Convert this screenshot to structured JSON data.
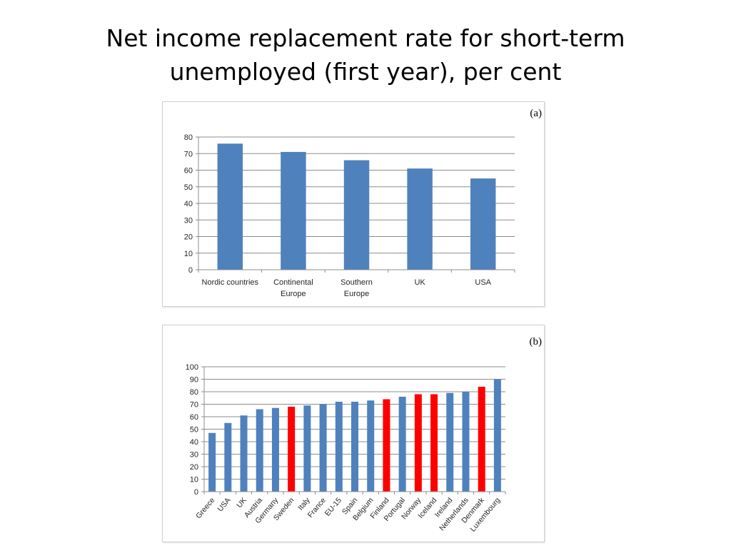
{
  "slide": {
    "title_line1": "Net income replacement rate for short-term",
    "title_line2": "unemployed (first year), per cent"
  },
  "colors": {
    "bar_default": "#4f81bd",
    "bar_highlight": "#ff0000",
    "gridline": "#8c8c8c",
    "axis": "#8c8c8c",
    "text": "#262626"
  },
  "chart_data": [
    {
      "type": "bar",
      "panel_label": "(a)",
      "categories": [
        "Nordic countries",
        "Continental Europe",
        "Southern Europe",
        "UK",
        "USA"
      ],
      "category_lines": [
        [
          "Nordic countries"
        ],
        [
          "Continental",
          "Europe"
        ],
        [
          "Southern",
          "Europe"
        ],
        [
          "UK"
        ],
        [
          "USA"
        ]
      ],
      "values": [
        76,
        71,
        66,
        61,
        55
      ],
      "ylim": [
        0,
        80
      ],
      "yticks": [
        0,
        10,
        20,
        30,
        40,
        50,
        60,
        70,
        80
      ],
      "grid": true,
      "legend": "none",
      "title": "",
      "xlabel": "",
      "ylabel": ""
    },
    {
      "type": "bar",
      "panel_label": "(b)",
      "categories": [
        "Greece",
        "USA",
        "UK",
        "Austria",
        "Germany",
        "Sweden",
        "Italy",
        "France",
        "EU-15",
        "Spain",
        "Belgium",
        "Finland",
        "Portugal",
        "Norway",
        "Iceland",
        "Ireland",
        "Netherlands",
        "Denmark",
        "Luxembourg"
      ],
      "values": [
        47,
        55,
        61,
        66,
        67,
        68,
        69,
        70,
        72,
        72,
        73,
        74,
        76,
        78,
        78,
        79,
        80,
        84,
        90
      ],
      "highlighted": [
        "Sweden",
        "Finland",
        "Norway",
        "Iceland",
        "Denmark"
      ],
      "ylim": [
        0,
        100
      ],
      "yticks": [
        0,
        10,
        20,
        30,
        40,
        50,
        60,
        70,
        80,
        90,
        100
      ],
      "grid": true,
      "legend": "none",
      "title": "",
      "xlabel": "",
      "ylabel": ""
    }
  ]
}
